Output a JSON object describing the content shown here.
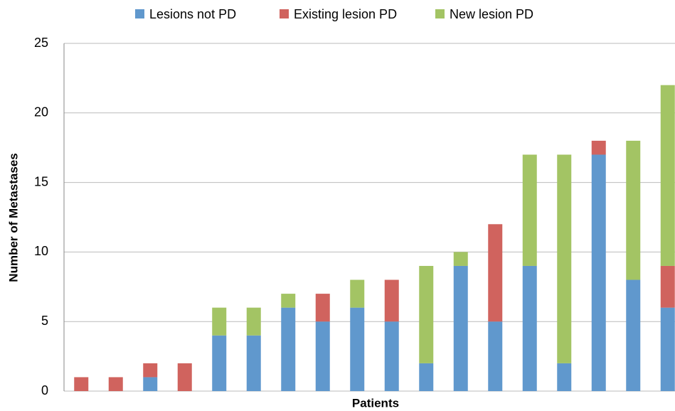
{
  "chart_data": {
    "type": "stacked-bar",
    "categories": [
      null,
      null,
      null,
      null,
      null,
      null,
      null,
      null,
      null,
      null,
      null,
      null,
      null,
      null,
      null,
      null,
      null,
      null
    ],
    "series": [
      {
        "name": "Lesions not PD",
        "color": "#6098cd",
        "values": [
          0,
          0,
          1,
          0,
          4,
          4,
          6,
          5,
          6,
          5,
          2,
          9,
          5,
          9,
          2,
          17,
          8,
          6
        ]
      },
      {
        "name": "Existing lesion PD",
        "color": "#d0635e",
        "values": [
          1,
          1,
          1,
          2,
          0,
          0,
          0,
          2,
          0,
          3,
          0,
          0,
          7,
          0,
          0,
          1,
          0,
          3
        ]
      },
      {
        "name": "New lesion PD",
        "color": "#a3c464",
        "values": [
          0,
          0,
          0,
          0,
          2,
          2,
          1,
          0,
          2,
          0,
          7,
          1,
          0,
          8,
          15,
          0,
          10,
          13
        ]
      }
    ],
    "x_label": "Patients",
    "y_label": "Number of Metastases",
    "ylim": [
      0,
      25
    ],
    "yticks": [
      0,
      5,
      10,
      15,
      20,
      25
    ],
    "grid": true,
    "legend": "top"
  }
}
